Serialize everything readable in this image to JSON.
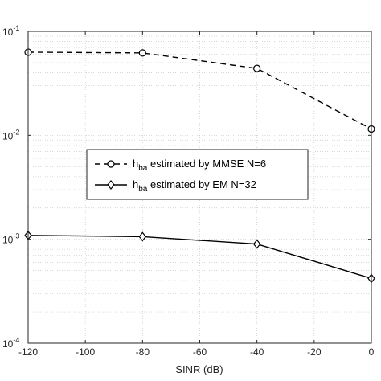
{
  "chart_data": {
    "type": "line",
    "xlabel": "SINR (dB)",
    "ylabel": "",
    "xlim": [
      -120,
      0
    ],
    "ylim": [
      0.0001,
      0.1
    ],
    "yscale": "log",
    "grid": true,
    "legend_placement": "center-left",
    "x": [
      -120,
      -80,
      -40,
      0
    ],
    "x_ticks": [
      -120,
      -100,
      -80,
      -60,
      -40,
      -20,
      0
    ],
    "x_tick_labels": [
      "-120",
      "-100",
      "-80",
      "-60",
      "-40",
      "-20",
      "0"
    ],
    "y_ticks": [
      {
        "value": 0.1,
        "base": "10",
        "exp": "-1"
      },
      {
        "value": 0.01,
        "base": "10",
        "exp": "-2"
      },
      {
        "value": 0.001,
        "base": "10",
        "exp": "-3"
      },
      {
        "value": 0.0001,
        "base": "10",
        "exp": "-4"
      }
    ],
    "series": [
      {
        "legend_main": "h",
        "legend_sub": "ba",
        "legend_rest": " estimated by MMSE N=6",
        "values": [
          0.063,
          0.062,
          0.044,
          0.0115
        ],
        "marker": "circle",
        "line": "dashed",
        "color": "#000000"
      },
      {
        "legend_main": "h",
        "legend_sub": "ba",
        "legend_rest": " estimated by EM N=32",
        "values": [
          0.00109,
          0.00106,
          0.0009,
          0.00042
        ],
        "marker": "diamond",
        "line": "solid",
        "color": "#000000"
      }
    ]
  }
}
